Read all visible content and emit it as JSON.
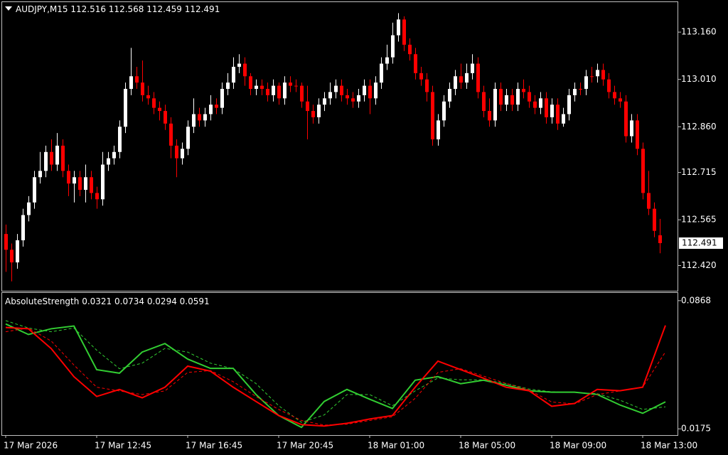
{
  "chart_data": [
    {
      "type": "candlestick",
      "title": "AUDJPY,M15",
      "up_color": "#ffffff",
      "down_color": "#ff0000",
      "open": [
        112.52,
        112.47,
        112.43,
        112.5,
        112.58,
        112.62,
        112.7,
        112.72,
        112.78,
        112.74,
        112.8,
        112.72,
        112.68,
        112.7,
        112.66,
        112.7,
        112.65,
        112.63,
        112.74,
        112.76,
        112.78,
        112.86,
        112.98,
        113.02,
        113.0,
        112.96,
        112.95,
        112.92,
        112.91,
        112.87,
        112.8,
        112.76,
        112.79,
        112.86,
        112.9,
        112.88,
        112.9,
        112.93,
        112.92,
        112.98,
        113.0,
        113.05,
        113.06,
        113.02,
        112.98,
        112.99,
        112.98,
        112.96,
        112.99,
        112.95,
        113.0,
        112.99,
        112.99,
        112.94,
        112.91,
        112.89,
        112.93,
        112.95,
        112.97,
        112.99,
        112.96,
        112.95,
        112.94,
        112.96,
        112.99,
        112.95,
        113.0,
        113.06,
        113.08,
        113.15,
        113.2,
        113.12,
        113.09,
        113.03,
        113.01,
        112.97,
        112.82,
        112.88,
        112.94,
        112.98,
        113.02,
        113.0,
        113.03,
        113.06,
        112.97,
        112.91,
        112.88,
        112.98,
        112.93,
        112.96,
        112.93,
        112.98,
        112.97,
        112.94,
        112.92,
        112.95,
        112.89,
        112.93,
        112.87,
        112.9,
        112.96,
        112.98,
        112.98,
        113.02,
        113.02,
        113.04,
        113.01,
        112.97,
        112.95,
        112.94,
        112.83,
        112.88,
        112.79,
        112.65,
        112.6,
        112.516
      ],
      "high": [
        112.55,
        112.49,
        112.52,
        112.6,
        112.64,
        112.72,
        112.78,
        112.8,
        112.82,
        112.84,
        112.82,
        112.74,
        112.72,
        112.72,
        112.74,
        112.72,
        112.67,
        112.78,
        112.78,
        112.8,
        112.88,
        113.0,
        113.11,
        113.05,
        113.07,
        112.99,
        112.97,
        112.94,
        112.93,
        112.89,
        112.82,
        112.81,
        112.88,
        112.95,
        112.92,
        112.92,
        112.96,
        112.95,
        113.0,
        113.03,
        113.08,
        113.09,
        113.08,
        113.03,
        113.01,
        113.01,
        113.0,
        113.01,
        113.0,
        113.02,
        113.02,
        113.01,
        113.0,
        112.99,
        112.93,
        112.95,
        112.97,
        113.0,
        113.01,
        113.01,
        112.98,
        112.97,
        112.98,
        113.01,
        113.01,
        113.02,
        113.08,
        113.12,
        113.19,
        113.22,
        113.21,
        113.14,
        113.11,
        113.05,
        113.03,
        112.99,
        112.9,
        112.96,
        113.0,
        113.04,
        113.06,
        113.06,
        113.09,
        113.08,
        112.99,
        112.95,
        113.0,
        113.0,
        112.98,
        112.98,
        113.0,
        113.01,
        112.99,
        112.96,
        112.97,
        112.97,
        112.95,
        112.95,
        112.92,
        112.98,
        113.0,
        113.0,
        113.04,
        113.05,
        113.06,
        113.06,
        113.03,
        112.99,
        112.97,
        112.96,
        112.9,
        112.9,
        112.81,
        112.72,
        112.62,
        112.568
      ],
      "low": [
        112.4,
        112.37,
        112.41,
        112.48,
        112.56,
        112.6,
        112.68,
        112.7,
        112.72,
        112.72,
        112.7,
        112.64,
        112.62,
        112.64,
        112.62,
        112.63,
        112.6,
        112.61,
        112.72,
        112.74,
        112.76,
        112.84,
        112.96,
        112.98,
        112.94,
        112.93,
        112.9,
        112.88,
        112.85,
        112.76,
        112.7,
        112.74,
        112.77,
        112.84,
        112.86,
        112.86,
        112.88,
        112.9,
        112.9,
        112.96,
        112.98,
        113.03,
        112.99,
        112.96,
        112.96,
        112.96,
        112.94,
        112.94,
        112.93,
        112.93,
        112.97,
        112.97,
        112.92,
        112.82,
        112.87,
        112.87,
        112.91,
        112.93,
        112.95,
        112.94,
        112.93,
        112.92,
        112.92,
        112.94,
        112.9,
        112.93,
        112.98,
        113.04,
        113.06,
        113.13,
        113.1,
        113.07,
        113.01,
        112.99,
        112.94,
        112.8,
        112.8,
        112.86,
        112.92,
        112.96,
        112.98,
        112.98,
        113.01,
        112.95,
        112.89,
        112.86,
        112.86,
        112.91,
        112.91,
        112.91,
        112.91,
        112.95,
        112.92,
        112.9,
        112.9,
        112.87,
        112.87,
        112.85,
        112.86,
        112.88,
        112.94,
        112.96,
        112.96,
        113.0,
        113.0,
        112.99,
        112.95,
        112.93,
        112.92,
        112.81,
        112.81,
        112.77,
        112.63,
        112.58,
        112.51,
        112.459
      ],
      "close": [
        112.47,
        112.43,
        112.5,
        112.58,
        112.62,
        112.7,
        112.72,
        112.78,
        112.74,
        112.8,
        112.72,
        112.68,
        112.7,
        112.66,
        112.7,
        112.65,
        112.63,
        112.74,
        112.76,
        112.78,
        112.86,
        112.98,
        113.02,
        113.0,
        112.96,
        112.95,
        112.92,
        112.91,
        112.87,
        112.8,
        112.76,
        112.79,
        112.86,
        112.9,
        112.88,
        112.9,
        112.93,
        112.92,
        112.98,
        113.0,
        113.05,
        113.06,
        113.02,
        112.98,
        112.99,
        112.98,
        112.96,
        112.99,
        112.95,
        113.0,
        112.99,
        112.99,
        112.94,
        112.91,
        112.89,
        112.93,
        112.95,
        112.97,
        112.99,
        112.96,
        112.95,
        112.94,
        112.96,
        112.99,
        112.95,
        113.0,
        113.06,
        113.08,
        113.15,
        113.2,
        113.12,
        113.09,
        113.03,
        113.01,
        112.97,
        112.82,
        112.88,
        112.94,
        112.98,
        113.02,
        113.0,
        113.03,
        113.06,
        112.97,
        112.91,
        112.88,
        112.98,
        112.93,
        112.96,
        112.93,
        112.98,
        112.97,
        112.94,
        112.92,
        112.95,
        112.89,
        112.93,
        112.87,
        112.9,
        112.96,
        112.98,
        112.98,
        113.02,
        113.02,
        113.04,
        113.01,
        112.97,
        112.95,
        112.94,
        112.83,
        112.88,
        112.79,
        112.65,
        112.6,
        112.53,
        112.491
      ],
      "ylim": [
        112.34,
        113.255
      ],
      "yticks": [
        {
          "value": 113.16,
          "label": "113.160"
        },
        {
          "value": 113.01,
          "label": "113.010"
        },
        {
          "value": 112.86,
          "label": "112.860"
        },
        {
          "value": 112.715,
          "label": "112.715"
        },
        {
          "value": 112.565,
          "label": "112.565"
        },
        {
          "value": 112.42,
          "label": "112.420"
        }
      ]
    },
    {
      "type": "line",
      "title": "AbsoluteStrength",
      "categories": [
        "17 Mar 2026",
        null,
        null,
        null,
        "17 Mar 12:45",
        null,
        null,
        null,
        "17 Mar 16:45",
        null,
        null,
        null,
        "17 Mar 20:45",
        null,
        null,
        null,
        "18 Mar 01:00",
        null,
        null,
        null,
        "18 Mar 05:00",
        null,
        null,
        null,
        "18 Mar 09:00",
        null,
        null,
        null,
        "18 Mar 13:00",
        null
      ],
      "series": [
        {
          "color": "#32cd32",
          "dashed": false,
          "values": [
            0.0742,
            0.0685,
            0.0716,
            0.0731,
            0.0495,
            0.0476,
            0.059,
            0.0636,
            0.0552,
            0.0502,
            0.0502,
            0.0361,
            0.0247,
            0.0183,
            0.0323,
            0.0388,
            0.0335,
            0.0285,
            0.0438,
            0.0457,
            0.0419,
            0.0438,
            0.0411,
            0.0381,
            0.0373,
            0.0373,
            0.0361,
            0.0304,
            0.0259,
            0.0321
          ]
        },
        {
          "color": "#ff0000",
          "dashed": false,
          "values": [
            0.0723,
            0.0716,
            0.0609,
            0.0457,
            0.035,
            0.0388,
            0.0343,
            0.04,
            0.0514,
            0.0487,
            0.04,
            0.0323,
            0.0247,
            0.0198,
            0.019,
            0.0205,
            0.0228,
            0.0247,
            0.04,
            0.0541,
            0.0495,
            0.0449,
            0.04,
            0.0381,
            0.0297,
            0.0312,
            0.0388,
            0.0381,
            0.04,
            0.0734
          ]
        },
        {
          "color": "#32cd32",
          "dashed": true,
          "values": [
            0.076,
            0.072,
            0.07,
            0.072,
            0.06,
            0.05,
            0.053,
            0.061,
            0.059,
            0.053,
            0.05,
            0.042,
            0.03,
            0.021,
            0.025,
            0.036,
            0.036,
            0.03,
            0.038,
            0.045,
            0.044,
            0.044,
            0.042,
            0.039,
            0.0375,
            0.0372,
            0.0365,
            0.033,
            0.028,
            0.0294
          ]
        },
        {
          "color": "#ff0000",
          "dashed": true,
          "values": [
            0.07,
            0.072,
            0.065,
            0.052,
            0.04,
            0.038,
            0.036,
            0.038,
            0.048,
            0.049,
            0.043,
            0.035,
            0.028,
            0.022,
            0.0195,
            0.02,
            0.022,
            0.024,
            0.034,
            0.048,
            0.05,
            0.046,
            0.042,
            0.0385,
            0.032,
            0.031,
            0.036,
            0.038,
            0.04,
            0.0591
          ]
        }
      ],
      "ylim": [
        0.0145,
        0.0906
      ],
      "yticks": [
        0.0868,
        0.0175
      ]
    }
  ]
}
